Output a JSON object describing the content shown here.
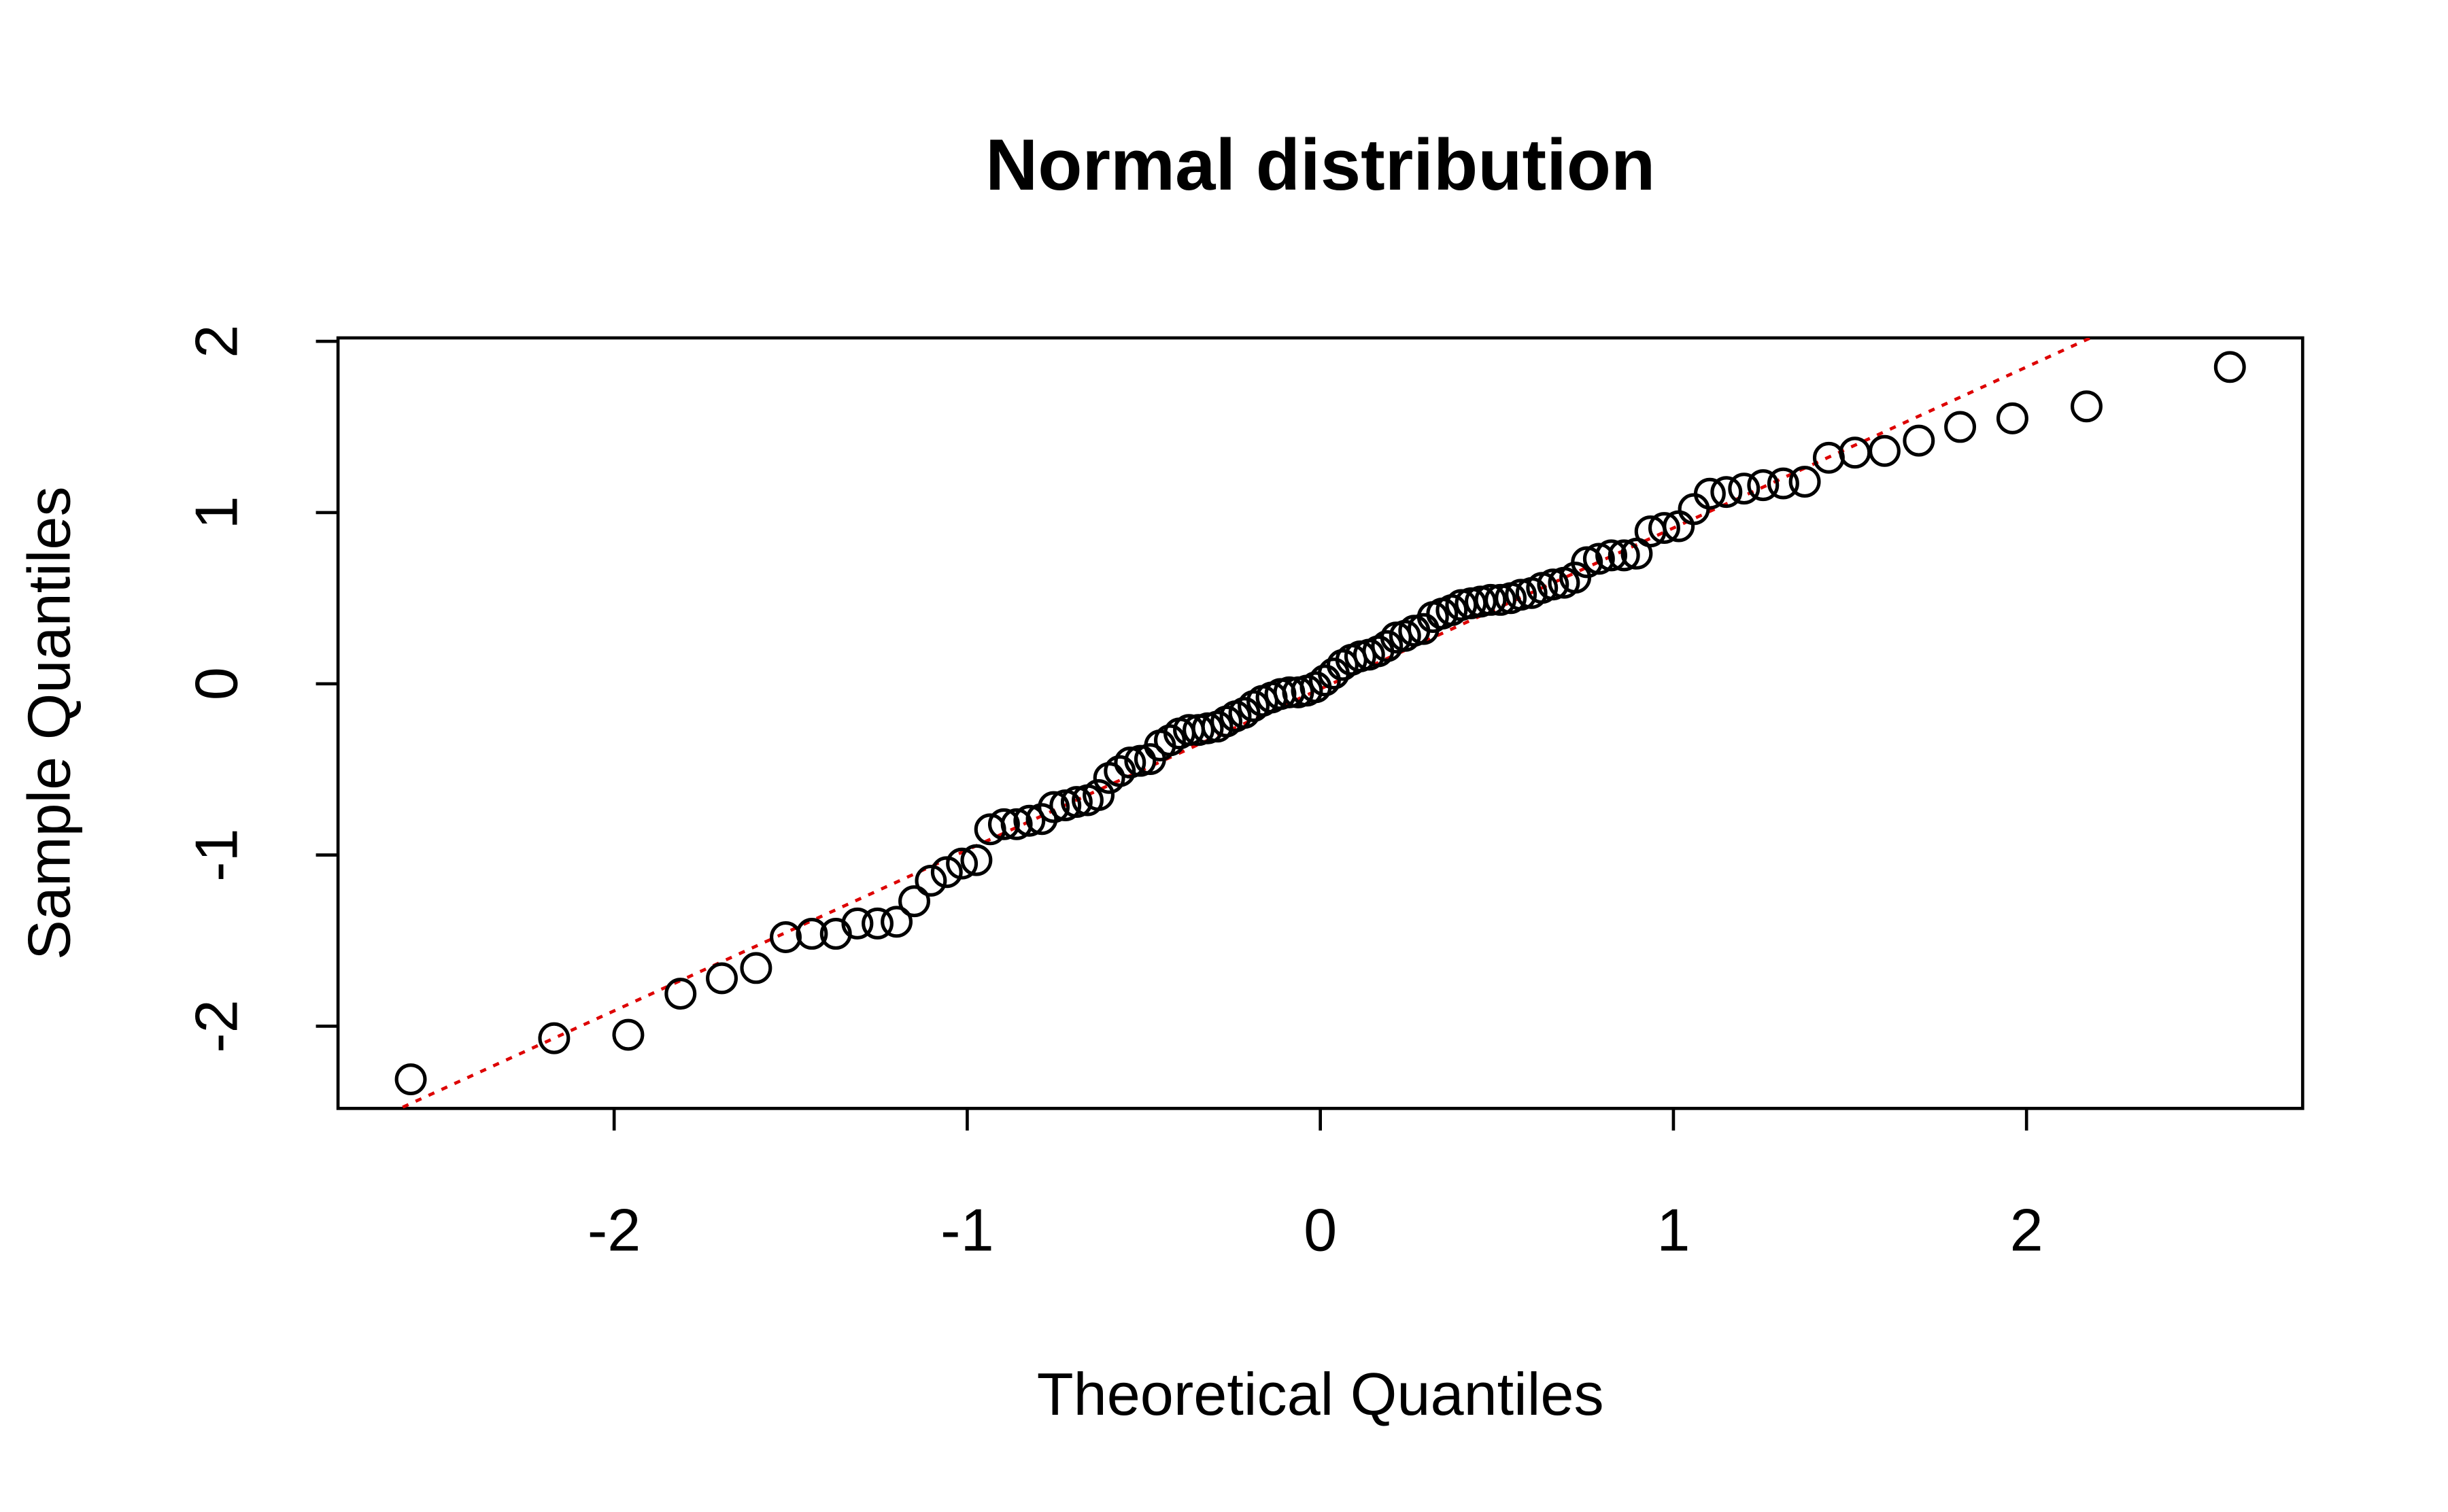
{
  "chart_data": {
    "type": "scatter",
    "title": "Normal distribution",
    "x_label": "Theoretical Quantiles",
    "y_label": "Sample Quantiles",
    "x": [
      -2.576,
      -2.17,
      -1.96,
      -1.812,
      -1.695,
      -1.598,
      -1.514,
      -1.44,
      -1.372,
      -1.311,
      -1.254,
      -1.2,
      -1.15,
      -1.103,
      -1.058,
      -1.015,
      -0.974,
      -0.935,
      -0.896,
      -0.86,
      -0.824,
      -0.789,
      -0.755,
      -0.722,
      -0.69,
      -0.659,
      -0.628,
      -0.598,
      -0.568,
      -0.539,
      -0.51,
      -0.482,
      -0.454,
      -0.426,
      -0.399,
      -0.372,
      -0.345,
      -0.319,
      -0.292,
      -0.266,
      -0.24,
      -0.215,
      -0.189,
      -0.164,
      -0.138,
      -0.113,
      -0.088,
      -0.063,
      -0.038,
      -0.013,
      0.013,
      0.038,
      0.063,
      0.088,
      0.113,
      0.138,
      0.164,
      0.189,
      0.215,
      0.24,
      0.266,
      0.292,
      0.319,
      0.345,
      0.372,
      0.399,
      0.426,
      0.454,
      0.482,
      0.51,
      0.539,
      0.568,
      0.598,
      0.628,
      0.659,
      0.69,
      0.722,
      0.755,
      0.789,
      0.824,
      0.86,
      0.896,
      0.935,
      0.974,
      1.015,
      1.058,
      1.103,
      1.15,
      1.2,
      1.254,
      1.311,
      1.372,
      1.44,
      1.514,
      1.598,
      1.695,
      1.812,
      1.96,
      2.17,
      2.576
    ],
    "values": [
      -2.31,
      -2.07,
      -2.05,
      -1.81,
      -1.72,
      -1.66,
      -1.48,
      -1.46,
      -1.46,
      -1.4,
      -1.4,
      -1.39,
      -1.27,
      -1.15,
      -1.1,
      -1.05,
      -1.03,
      -0.85,
      -0.82,
      -0.82,
      -0.8,
      -0.79,
      -0.72,
      -0.71,
      -0.69,
      -0.68,
      -0.65,
      -0.55,
      -0.51,
      -0.46,
      -0.45,
      -0.44,
      -0.36,
      -0.33,
      -0.29,
      -0.27,
      -0.27,
      -0.26,
      -0.25,
      -0.22,
      -0.19,
      -0.17,
      -0.13,
      -0.1,
      -0.08,
      -0.06,
      -0.05,
      -0.05,
      -0.04,
      -0.02,
      0.02,
      0.06,
      0.11,
      0.14,
      0.16,
      0.17,
      0.19,
      0.22,
      0.27,
      0.28,
      0.31,
      0.32,
      0.39,
      0.41,
      0.43,
      0.46,
      0.47,
      0.48,
      0.49,
      0.49,
      0.5,
      0.52,
      0.53,
      0.56,
      0.58,
      0.59,
      0.62,
      0.71,
      0.73,
      0.75,
      0.75,
      0.76,
      0.89,
      0.91,
      0.92,
      1.02,
      1.11,
      1.12,
      1.14,
      1.16,
      1.17,
      1.18,
      1.32,
      1.35,
      1.36,
      1.42,
      1.5,
      1.55,
      1.62,
      1.85
    ],
    "color": "#000000",
    "line": {
      "slope": 0.94,
      "intercept": -0.03,
      "color": "#dd0000"
    },
    "xlim": [
      -2.782,
      2.782
    ],
    "ylim": [
      -2.48,
      2.02
    ],
    "xticks": [
      -2,
      -1,
      0,
      1,
      2
    ],
    "yticks": [
      -2,
      -1,
      0,
      1,
      2
    ]
  }
}
